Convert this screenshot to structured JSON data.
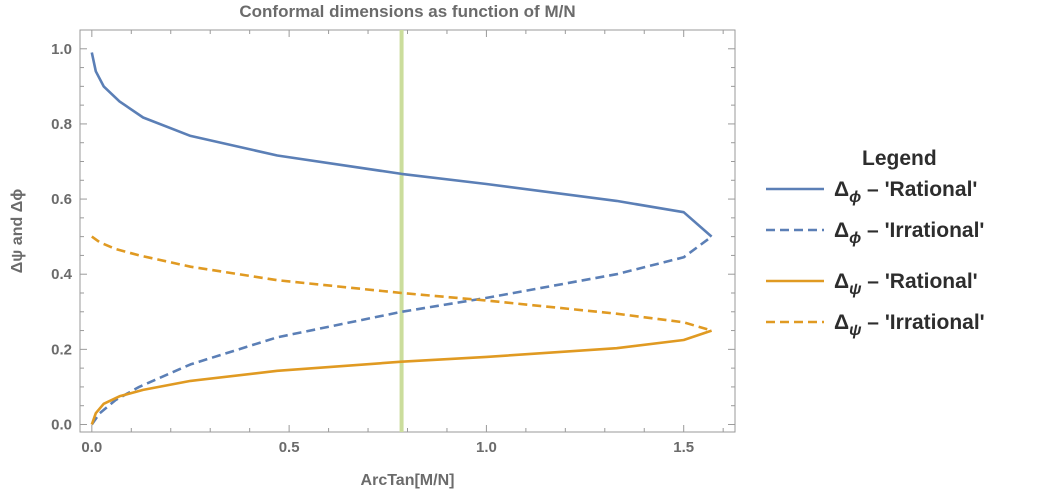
{
  "chart_data": {
    "type": "line",
    "title": "Conformal dimensions as function of M/N",
    "xlabel": "ArcTan[M/N]",
    "ylabel": "Δψ and Δϕ",
    "xlim": [
      -0.03,
      1.63
    ],
    "ylim": [
      -0.02,
      1.05
    ],
    "x_ticks": [
      "0.0",
      "0.5",
      "1.0",
      "1.5"
    ],
    "y_ticks": [
      "0.0",
      "0.2",
      "0.4",
      "0.6",
      "0.8",
      "1.0"
    ],
    "vertical_marker": {
      "x": 0.785,
      "color": "#cbdd9c"
    },
    "legend": {
      "title": "Legend",
      "position": "right"
    },
    "series": [
      {
        "name": "Δϕ – 'Rational'",
        "legend_main": "Δ",
        "legend_sub": "ϕ",
        "legend_rest": " – 'Rational'",
        "color": "#5b7fb6",
        "dash": "solid",
        "x": [
          0.0,
          0.01,
          0.03,
          0.07,
          0.13,
          0.25,
          0.47,
          0.785,
          1.0,
          1.33,
          1.5,
          1.5708
        ],
        "y": [
          0.99,
          0.94,
          0.9,
          0.86,
          0.817,
          0.768,
          0.716,
          0.667,
          0.64,
          0.595,
          0.565,
          0.5
        ]
      },
      {
        "name": "Δϕ – 'Irrational'",
        "legend_main": "Δ",
        "legend_sub": "ϕ",
        "legend_rest": " – 'Irrational'",
        "color": "#5b7fb6",
        "dash": "dashed",
        "x": [
          0.0,
          0.02,
          0.06,
          0.12,
          0.25,
          0.47,
          0.785,
          1.0,
          1.33,
          1.5,
          1.5708
        ],
        "y": [
          0.0,
          0.03,
          0.065,
          0.1,
          0.16,
          0.232,
          0.3,
          0.337,
          0.4,
          0.445,
          0.5
        ]
      },
      {
        "name": "Δψ – 'Rational'",
        "legend_main": "Δ",
        "legend_sub": "ψ",
        "legend_rest": " – 'Rational'",
        "color": "#e09a22",
        "dash": "solid",
        "x": [
          0.0,
          0.01,
          0.03,
          0.07,
          0.13,
          0.25,
          0.47,
          0.785,
          1.0,
          1.33,
          1.5,
          1.5708
        ],
        "y": [
          0.0,
          0.03,
          0.055,
          0.075,
          0.092,
          0.116,
          0.143,
          0.167,
          0.18,
          0.203,
          0.225,
          0.25
        ]
      },
      {
        "name": "Δψ – 'Irrational'",
        "legend_main": "Δ",
        "legend_sub": "ψ",
        "legend_rest": " – 'Irrational'",
        "color": "#e09a22",
        "dash": "dashed",
        "x": [
          0.0,
          0.02,
          0.06,
          0.12,
          0.25,
          0.47,
          0.785,
          1.0,
          1.33,
          1.5,
          1.5708
        ],
        "y": [
          0.5,
          0.485,
          0.467,
          0.45,
          0.42,
          0.384,
          0.35,
          0.33,
          0.295,
          0.272,
          0.25
        ]
      }
    ]
  }
}
